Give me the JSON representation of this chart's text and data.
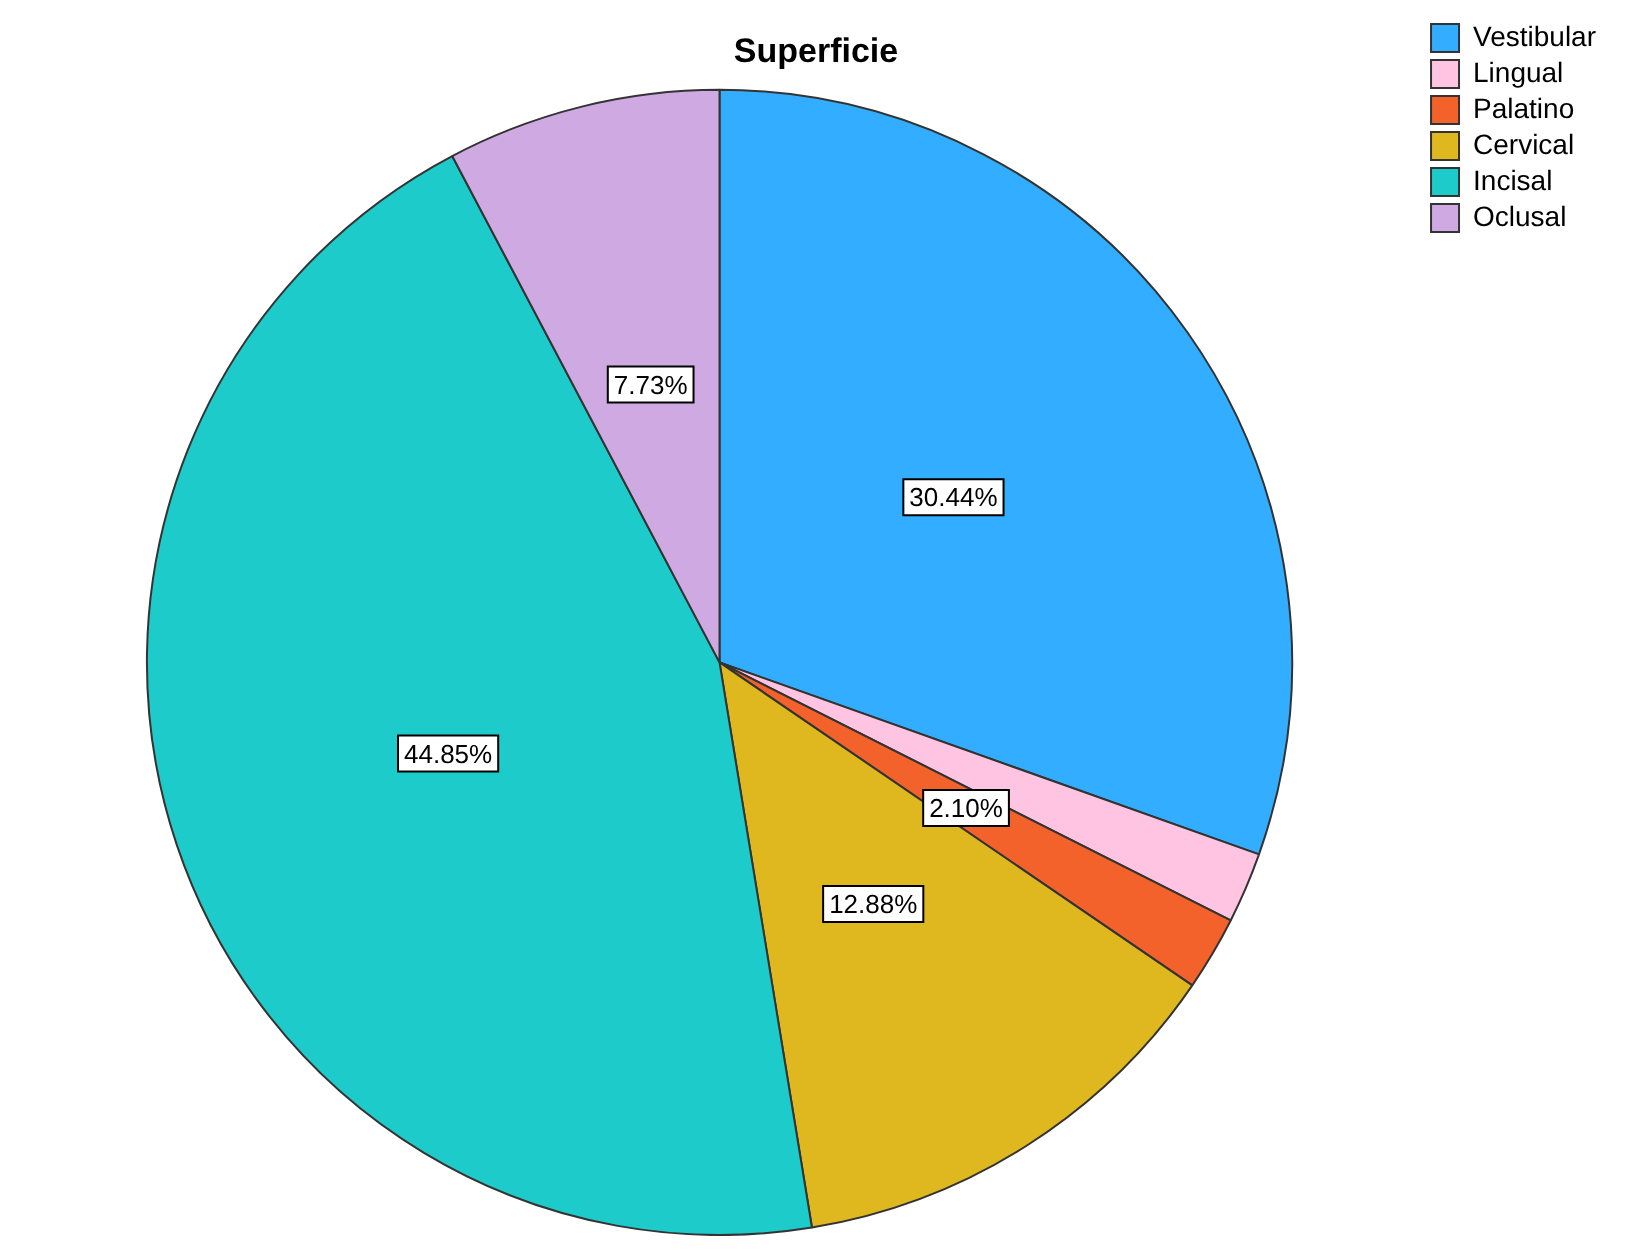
{
  "chart_data": {
    "type": "pie",
    "title": "Superficie",
    "categories": [
      "Vestibular",
      "Lingual",
      "Palatino",
      "Cervical",
      "Incisal",
      "Oclusal"
    ],
    "values": [
      30.44,
      2.0,
      2.1,
      12.88,
      44.85,
      7.73
    ],
    "value_labels": [
      "30.44%",
      null,
      "2.10%",
      "12.88%",
      "44.85%",
      "7.73%"
    ],
    "colors": [
      "#33adff",
      "#ffc4e1",
      "#f2622a",
      "#dfb81f",
      "#1ecbcb",
      "#cfa9e2"
    ],
    "legend": "top right"
  }
}
